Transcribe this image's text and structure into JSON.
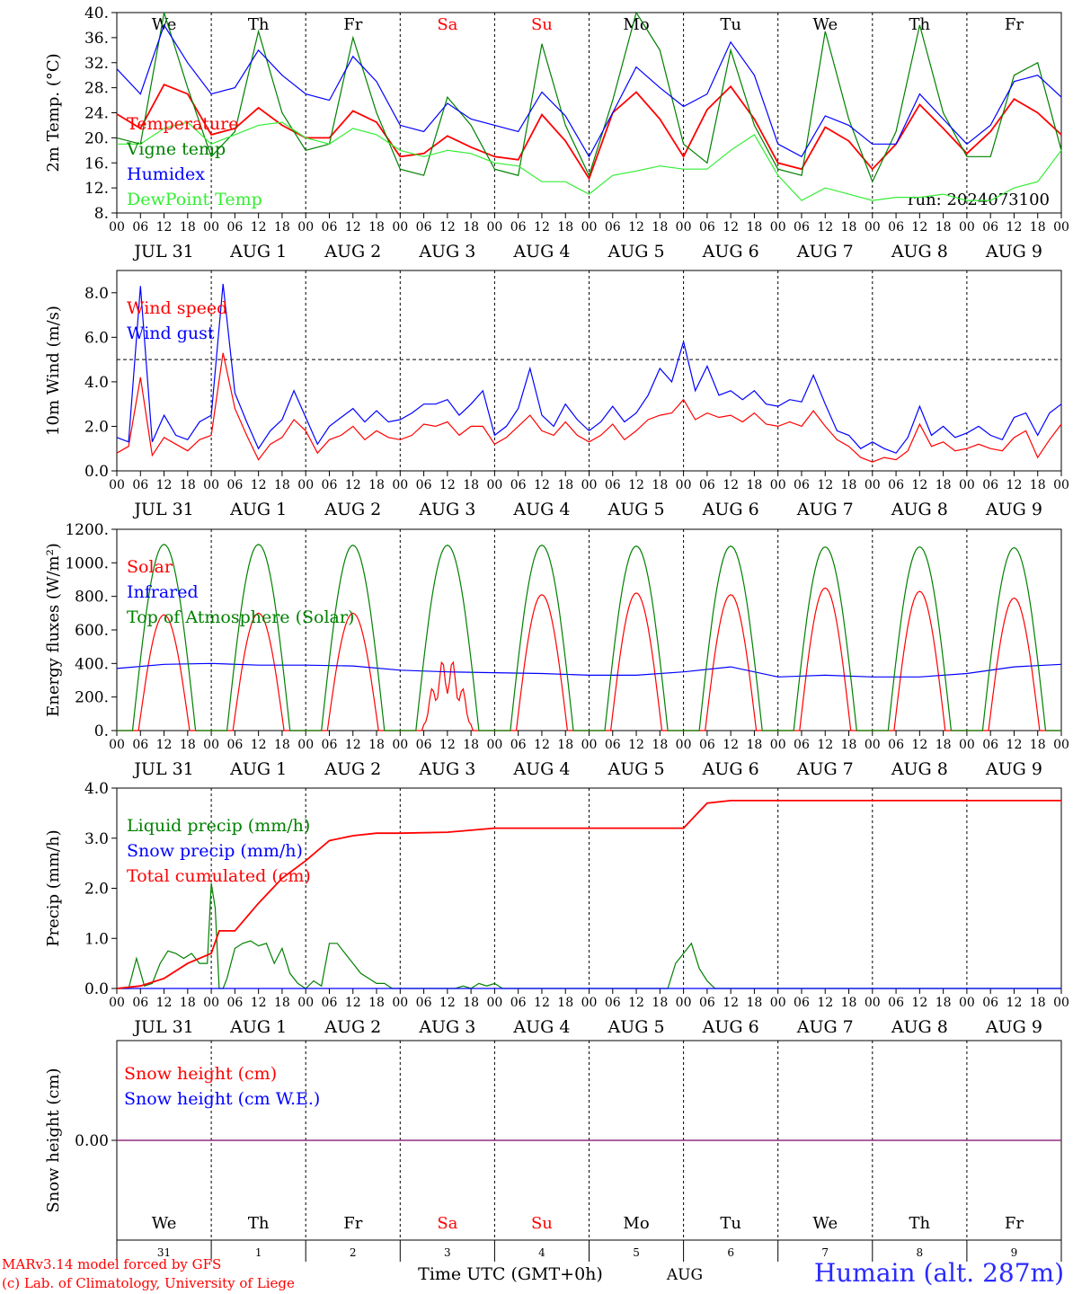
{
  "meta": {
    "run_label": "run: 2024073100",
    "credit_line1": "MARv3.14 model forced by GFS",
    "credit_line2": "(c) Lab. of Climatology, University of Liege",
    "station": "Humain (alt. 287m)",
    "time_axis_title": "Time UTC (GMT+0h)",
    "month_label": "AUG"
  },
  "days": {
    "weekday_labels": [
      "We",
      "Th",
      "Fr",
      "Sa",
      "Su",
      "Mo",
      "Tu",
      "We",
      "Th",
      "Fr"
    ],
    "weekend_flags": [
      false,
      false,
      false,
      true,
      true,
      false,
      false,
      false,
      false,
      false
    ],
    "date_labels": [
      "JUL 31",
      "AUG  1",
      "AUG  2",
      "AUG  3",
      "AUG  4",
      "AUG  5",
      "AUG  6",
      "AUG  7",
      "AUG  8",
      "AUG  9"
    ],
    "day_numbers": [
      "31",
      "1",
      "2",
      "3",
      "4",
      "5",
      "6",
      "7",
      "8",
      "9"
    ],
    "hour_labels": [
      "00",
      "06",
      "12",
      "18"
    ],
    "final_hour_label": "00"
  },
  "colors": {
    "red": "#ff0000",
    "green": "#008000",
    "blue": "#0000ff",
    "lime": "#33ee33",
    "purple": "#7a2a8a",
    "weekend": "#ff0000"
  },
  "chart_data": [
    {
      "id": "temperature",
      "type": "line",
      "ylabel": "2m Temp. (°C)",
      "ylim": [
        8,
        40
      ],
      "yticks": [
        8,
        12,
        16,
        20,
        24,
        28,
        32,
        36,
        40
      ],
      "ytick_labels": [
        "8.",
        "12.",
        "16.",
        "20.",
        "24.",
        "28.",
        "32.",
        "36.",
        "40."
      ],
      "x_unit": "hours since 2024-07-31 00 UTC",
      "x": [
        0,
        6,
        12,
        18,
        24,
        30,
        36,
        42,
        48,
        54,
        60,
        66,
        72,
        78,
        84,
        90,
        96,
        102,
        108,
        114,
        120,
        126,
        132,
        138,
        144,
        150,
        156,
        162,
        168,
        174,
        180,
        186,
        192,
        198,
        204,
        210,
        216,
        222,
        228,
        234,
        240
      ],
      "legend": [
        "Temperature",
        "Vigne temp",
        "Humidex",
        "DewPoint Temp"
      ],
      "series": [
        {
          "name": "Temperature",
          "color": "red",
          "values": [
            23.8,
            21.5,
            28.5,
            27,
            20.5,
            21.5,
            24.8,
            22,
            20,
            20,
            24.3,
            22.5,
            17,
            17.5,
            20.3,
            18.5,
            17,
            16.5,
            23.7,
            19.5,
            13.5,
            24,
            27.3,
            23,
            17,
            24.5,
            28.2,
            23,
            16,
            15,
            21.7,
            19.5,
            15,
            19,
            25.3,
            21.5,
            17.5,
            21,
            26.2,
            24,
            20.5
          ]
        },
        {
          "name": "Vigne temp",
          "color": "green",
          "values": [
            20,
            19,
            40,
            28,
            17,
            21,
            37,
            24,
            18,
            19,
            36,
            24,
            15,
            14,
            26.5,
            22,
            15,
            14,
            35,
            22,
            14,
            26,
            40,
            34,
            19,
            16,
            34,
            22,
            15,
            14,
            37,
            23,
            13,
            21,
            38,
            24,
            17,
            17,
            30,
            32,
            18
          ]
        },
        {
          "name": "Humidex",
          "color": "blue",
          "values": [
            31,
            27,
            38,
            32,
            27,
            28,
            34,
            30,
            27,
            26,
            33,
            29,
            22,
            21,
            25.5,
            23,
            22,
            21,
            27.3,
            23.5,
            17,
            24,
            31.3,
            28,
            25,
            27,
            35.3,
            30,
            19,
            17,
            23.5,
            22,
            19,
            19,
            27,
            23,
            19,
            22,
            29,
            30,
            26.5
          ]
        },
        {
          "name": "DewPoint Temp",
          "color": "lime",
          "values": [
            19,
            19,
            21.5,
            22.5,
            19,
            20.5,
            22,
            22.5,
            20,
            19,
            21.5,
            20.5,
            18,
            17,
            18,
            17.5,
            16,
            15.5,
            13,
            13,
            11,
            14,
            14.7,
            15.5,
            15,
            15,
            18,
            20.5,
            14,
            10,
            12,
            11,
            10,
            10.5,
            10.5,
            11,
            10,
            10,
            12,
            13,
            18
          ]
        }
      ]
    },
    {
      "id": "wind",
      "type": "line",
      "ylabel": "10m Wind (m/s)",
      "ylim": [
        0,
        9
      ],
      "yticks": [
        0,
        2,
        4,
        6,
        8
      ],
      "ytick_labels": [
        "0.0",
        "2.0",
        "4.0",
        "6.0",
        "8.0"
      ],
      "reference_line": 5,
      "x_unit": "hours since 2024-07-31 00 UTC",
      "x": [
        0,
        3,
        6,
        9,
        12,
        15,
        18,
        21,
        24,
        27,
        30,
        33,
        36,
        39,
        42,
        45,
        48,
        51,
        54,
        57,
        60,
        63,
        66,
        69,
        72,
        75,
        78,
        81,
        84,
        87,
        90,
        93,
        96,
        99,
        102,
        105,
        108,
        111,
        114,
        117,
        120,
        123,
        126,
        129,
        132,
        135,
        138,
        141,
        144,
        147,
        150,
        153,
        156,
        159,
        162,
        165,
        168,
        171,
        174,
        177,
        180,
        183,
        186,
        189,
        192,
        195,
        198,
        201,
        204,
        207,
        210,
        213,
        216,
        219,
        222,
        225,
        228,
        231,
        234,
        237,
        240
      ],
      "legend": [
        "Wind speed",
        "Wind gust"
      ],
      "series": [
        {
          "name": "Wind speed",
          "color": "red",
          "values": [
            0.8,
            1.1,
            4.2,
            0.7,
            1.5,
            1.2,
            0.9,
            1.4,
            1.6,
            5.3,
            2.8,
            1.6,
            0.5,
            1.2,
            1.5,
            2.3,
            1.8,
            0.8,
            1.4,
            1.6,
            2,
            1.4,
            1.8,
            1.5,
            1.4,
            1.6,
            2.1,
            2,
            2.2,
            1.6,
            2,
            2,
            1.2,
            1.5,
            2,
            2.5,
            1.8,
            1.6,
            2.2,
            1.6,
            1.3,
            1.6,
            2.1,
            1.4,
            1.8,
            2.3,
            2.5,
            2.6,
            3.2,
            2.3,
            2.6,
            2.4,
            2.5,
            2.2,
            2.6,
            2.1,
            2,
            2.2,
            2,
            2.7,
            2,
            1.4,
            1.1,
            0.6,
            0.4,
            0.6,
            0.5,
            0.9,
            2.1,
            1.1,
            1.3,
            0.9,
            1,
            1.2,
            1,
            0.9,
            1.5,
            1.8,
            0.6,
            1.4,
            2.1
          ]
        },
        {
          "name": "Wind gust",
          "color": "blue",
          "values": [
            1.5,
            1.3,
            8.3,
            1.3,
            2.5,
            1.6,
            1.4,
            2.2,
            2.5,
            8.4,
            3.5,
            2.2,
            1,
            1.8,
            2.3,
            3.6,
            2.4,
            1.2,
            2,
            2.4,
            2.8,
            2.2,
            2.7,
            2.2,
            2.3,
            2.6,
            3,
            3,
            3.2,
            2.5,
            3,
            3.6,
            1.6,
            2,
            2.8,
            4.6,
            2.5,
            2,
            3,
            2.3,
            1.8,
            2.2,
            2.9,
            2.2,
            2.6,
            3.4,
            4.6,
            4,
            5.8,
            3.6,
            4.7,
            3.4,
            3.6,
            3.2,
            3.6,
            3,
            2.9,
            3.2,
            3.1,
            4.3,
            3,
            1.8,
            1.6,
            1,
            1.3,
            1,
            0.8,
            1.5,
            2.9,
            1.6,
            2,
            1.5,
            1.7,
            2,
            1.6,
            1.4,
            2.4,
            2.6,
            1.6,
            2.6,
            3
          ]
        }
      ]
    },
    {
      "id": "energy",
      "type": "line",
      "ylabel": "Energy fluxes (W/m²)",
      "ylim": [
        0,
        1200
      ],
      "yticks": [
        0,
        200,
        400,
        600,
        800,
        1000,
        1200
      ],
      "ytick_labels": [
        "0.",
        "200.",
        "400.",
        "600.",
        "800.",
        "1000.",
        "1200."
      ],
      "legend": [
        "Solar",
        "Infrared",
        "Top of Atmosphere (Solar)"
      ],
      "series": [
        {
          "name": "Solar",
          "color": "red",
          "day_peaks": [
            690,
            700,
            700,
            440,
            810,
            820,
            810,
            850,
            830,
            790
          ]
        },
        {
          "name": "Infrared",
          "color": "blue",
          "x": [
            0,
            12,
            24,
            36,
            48,
            60,
            72,
            84,
            96,
            108,
            120,
            132,
            144,
            156,
            168,
            180,
            192,
            204,
            216,
            228,
            240
          ],
          "values": [
            370,
            395,
            400,
            390,
            390,
            385,
            360,
            350,
            345,
            340,
            330,
            330,
            350,
            380,
            320,
            330,
            320,
            320,
            340,
            380,
            395
          ]
        },
        {
          "name": "Top of Atmosphere (Solar)",
          "color": "green",
          "day_peaks": [
            1110,
            1110,
            1105,
            1105,
            1105,
            1100,
            1100,
            1095,
            1095,
            1090
          ]
        }
      ]
    },
    {
      "id": "precip",
      "type": "line",
      "ylabel": "Precip (mm/h)",
      "ylim": [
        0,
        4
      ],
      "yticks": [
        0,
        1,
        2,
        3,
        4
      ],
      "ytick_labels": [
        "0.0",
        "1.0",
        "2.0",
        "3.0",
        "4.0"
      ],
      "x_unit": "hours since 2024-07-31 00 UTC",
      "legend": [
        "Liquid precip (mm/h)",
        "Snow precip (mm/h)",
        "Total cumulated (cm)"
      ],
      "series": [
        {
          "name": "Liquid precip (mm/h)",
          "color": "green",
          "x": [
            0,
            3,
            5,
            7,
            9,
            11,
            13,
            15,
            17,
            19,
            21,
            23,
            24,
            25,
            26,
            27,
            28,
            30,
            32,
            34,
            36,
            38,
            40,
            42,
            44,
            46,
            48,
            50,
            52,
            54,
            56,
            58,
            60,
            62,
            64,
            66,
            68,
            70,
            72,
            74,
            78,
            82,
            86,
            88,
            90,
            92,
            94,
            96,
            98,
            140,
            142,
            144,
            146,
            148,
            150,
            152,
            154,
            240
          ],
          "values": [
            0,
            0,
            0.6,
            0.05,
            0.1,
            0.5,
            0.75,
            0.7,
            0.6,
            0.7,
            0.5,
            0.5,
            2.1,
            1.6,
            0,
            0,
            0.2,
            0.8,
            0.9,
            0.95,
            0.85,
            0.9,
            0.5,
            0.8,
            0.3,
            0.1,
            0,
            0.15,
            0.05,
            0.9,
            0.9,
            0.7,
            0.5,
            0.3,
            0.2,
            0.1,
            0.1,
            0,
            0,
            0,
            0,
            0,
            0,
            0.05,
            0,
            0.1,
            0.05,
            0.1,
            0,
            0,
            0.5,
            0.7,
            0.9,
            0.4,
            0.15,
            0,
            0,
            0
          ]
        },
        {
          "name": "Snow precip (mm/h)",
          "color": "blue",
          "x": [
            0,
            240
          ],
          "values": [
            0,
            0
          ]
        },
        {
          "name": "Total cumulated (cm)",
          "color": "red",
          "x": [
            0,
            6,
            12,
            18,
            24,
            26,
            30,
            36,
            42,
            48,
            54,
            60,
            66,
            72,
            84,
            96,
            108,
            120,
            132,
            144,
            150,
            156,
            168,
            180,
            192,
            204,
            216,
            228,
            240
          ],
          "values": [
            0,
            0.05,
            0.2,
            0.5,
            0.7,
            1.15,
            1.15,
            1.7,
            2.2,
            2.55,
            2.95,
            3.05,
            3.1,
            3.1,
            3.12,
            3.2,
            3.2,
            3.2,
            3.2,
            3.2,
            3.7,
            3.75,
            3.75,
            3.75,
            3.75,
            3.75,
            3.75,
            3.75,
            3.75
          ]
        }
      ]
    },
    {
      "id": "snow",
      "type": "line",
      "ylabel": "Snow height (cm)",
      "yticks": [
        0
      ],
      "ytick_labels": [
        "0.00"
      ],
      "legend": [
        "Snow height (cm)",
        "Snow height (cm W.E.)"
      ],
      "series": [
        {
          "name": "Snow height (cm)",
          "color": "red",
          "x": [
            0,
            240
          ],
          "values": [
            0,
            0
          ]
        },
        {
          "name": "Snow height (cm W.E.)",
          "color": "blue",
          "x": [
            0,
            240
          ],
          "values": [
            0,
            0
          ]
        }
      ]
    }
  ]
}
